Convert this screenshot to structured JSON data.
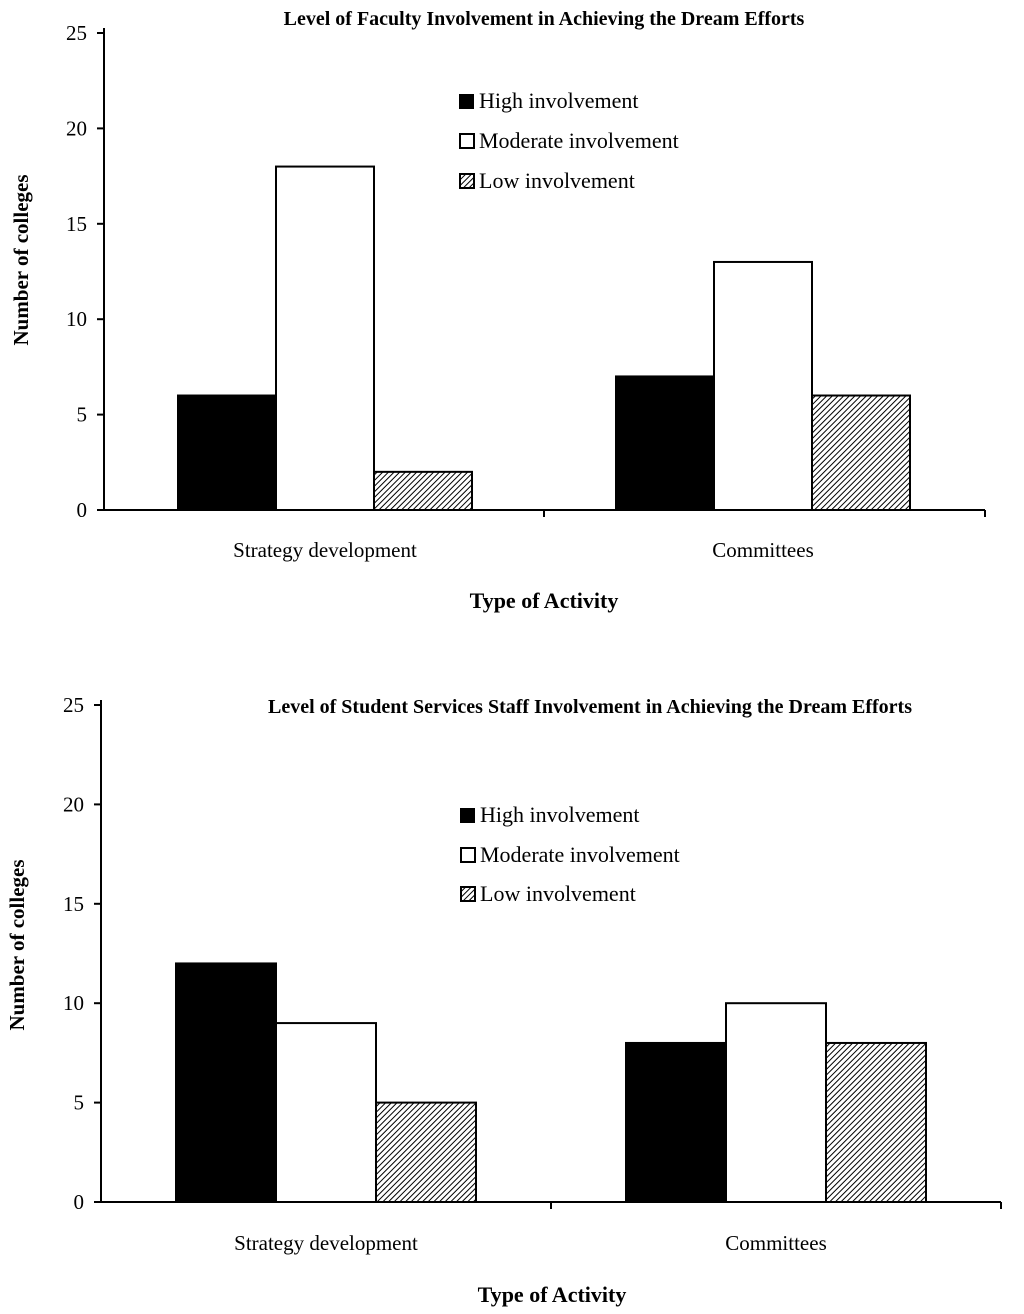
{
  "colors": {
    "high": "#000000",
    "moderate": "#ffffff",
    "low_pattern": "diagonal-hatch",
    "axis": "#000000"
  },
  "chart_data": [
    {
      "type": "bar",
      "title": "Level of Faculty Involvement in Achieving the Dream Efforts",
      "xlabel": "Type of Activity",
      "ylabel": "Number of colleges",
      "categories": [
        "Strategy development",
        "Committees"
      ],
      "ylim": [
        0,
        25
      ],
      "yticks": [
        0,
        5,
        10,
        15,
        20,
        25
      ],
      "grid": false,
      "legend_position": "top-center",
      "series": [
        {
          "name": "High involvement",
          "values": [
            6,
            7
          ]
        },
        {
          "name": "Moderate involvement",
          "values": [
            18,
            13
          ]
        },
        {
          "name": "Low involvement",
          "values": [
            2,
            6
          ]
        }
      ]
    },
    {
      "type": "bar",
      "title": "Level of Student Services Staff Involvement in Achieving the Dream Efforts",
      "xlabel": "Type of Activity",
      "ylabel": "Number of colleges",
      "categories": [
        "Strategy development",
        "Committees"
      ],
      "ylim": [
        0,
        25
      ],
      "yticks": [
        0,
        5,
        10,
        15,
        20,
        25
      ],
      "grid": false,
      "legend_position": "top-center",
      "series": [
        {
          "name": "High involvement",
          "values": [
            12,
            8
          ]
        },
        {
          "name": "Moderate involvement",
          "values": [
            9,
            10
          ]
        },
        {
          "name": "Low involvement",
          "values": [
            5,
            8
          ]
        }
      ]
    }
  ]
}
